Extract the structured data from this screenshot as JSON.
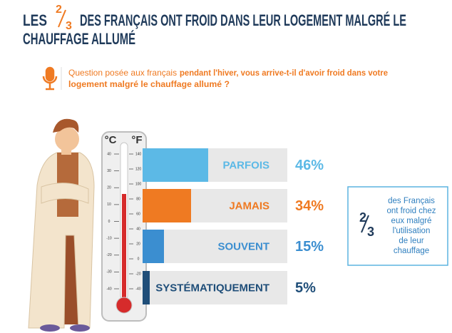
{
  "chart_data": {
    "type": "bar",
    "orientation": "horizontal",
    "title_parts": [
      "LES",
      "2",
      "3",
      "DES FRANÇAIS ONT FROID DANS LEUR LOGEMENT MALGRÉ LE",
      "CHAUFFAGE ALLUMÉ"
    ],
    "question_intro": "Question posée aux français :",
    "question_lines": [
      "pendant l'hiver, vous arrive-t-il d'avoir froid dans votre",
      "logement malgré le chauffage allumé ?"
    ],
    "categories": [
      "PARFOIS",
      "JAMAIS",
      "SOUVENT",
      "SYSTÉMATIQUEMENT"
    ],
    "values": [
      46,
      34,
      15,
      5
    ],
    "value_labels": [
      "46%",
      "34%",
      "15%",
      "5%"
    ],
    "colors": [
      "#5cb9e6",
      "#ef7a22",
      "#3b8ed0",
      "#1f4e79"
    ],
    "xlim": [
      0,
      100
    ],
    "callout": {
      "numerator": "2",
      "denominator": "3",
      "lines": [
        "des Français",
        "ont froid chez",
        "eux malgré",
        "l'utilisation",
        "de leur",
        "chauffage"
      ]
    }
  },
  "thermometer": {
    "celsius_label": "°C",
    "fahrenheit_label": "°F",
    "celsius_ticks": [
      40,
      30,
      20,
      10,
      0,
      -10,
      -20,
      -30,
      -40
    ],
    "fahrenheit_ticks": [
      140,
      120,
      100,
      80,
      60,
      40,
      20,
      0,
      -20,
      -40
    ]
  }
}
